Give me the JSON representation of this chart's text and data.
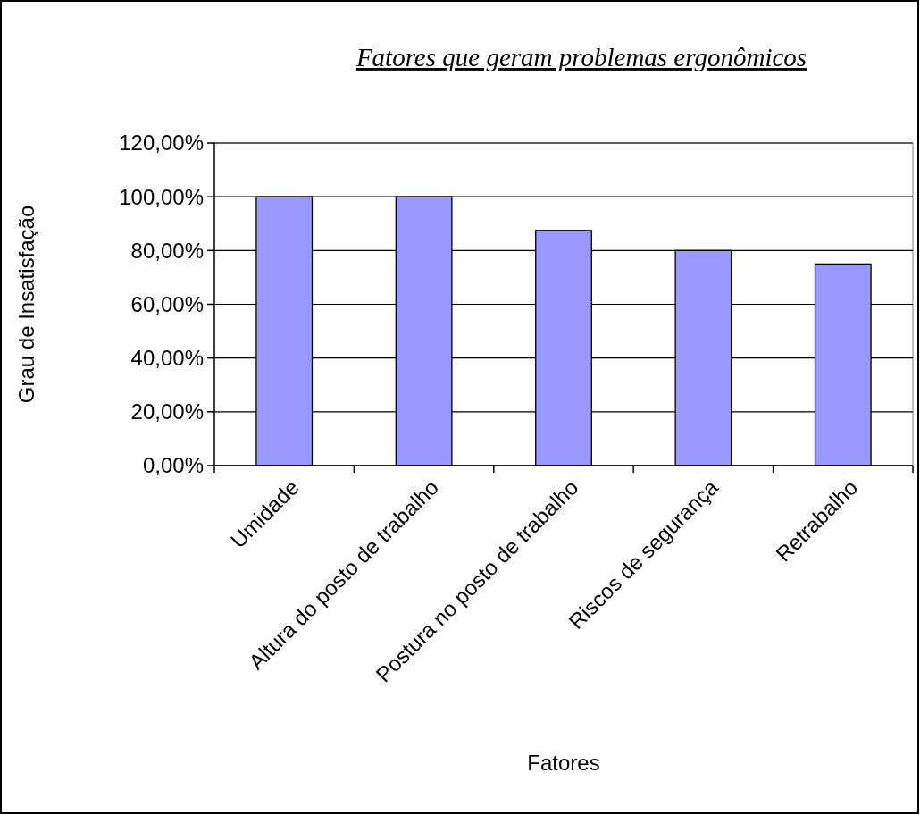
{
  "chart_data": {
    "type": "bar",
    "title": "Fatores que geram problemas ergonômicos",
    "xlabel": "Fatores",
    "ylabel": "Grau de Insatisfação",
    "categories": [
      "Umidade",
      "Altura do posto de trabalho",
      "Postura no posto de trabalho",
      "Riscos de segurança",
      "Retrabalho"
    ],
    "values": [
      100,
      100,
      87.5,
      80,
      75
    ],
    "color": "#9999ff",
    "ylim": [
      0,
      120
    ],
    "yticks": [
      {
        "value": 0,
        "label": "0,00%"
      },
      {
        "value": 20,
        "label": "20,00%"
      },
      {
        "value": 40,
        "label": "40,00%"
      },
      {
        "value": 60,
        "label": "60,00%"
      },
      {
        "value": 80,
        "label": "80,00%"
      },
      {
        "value": 100,
        "label": "100,00%"
      },
      {
        "value": 120,
        "label": "120,00%"
      }
    ],
    "grid": "y"
  }
}
